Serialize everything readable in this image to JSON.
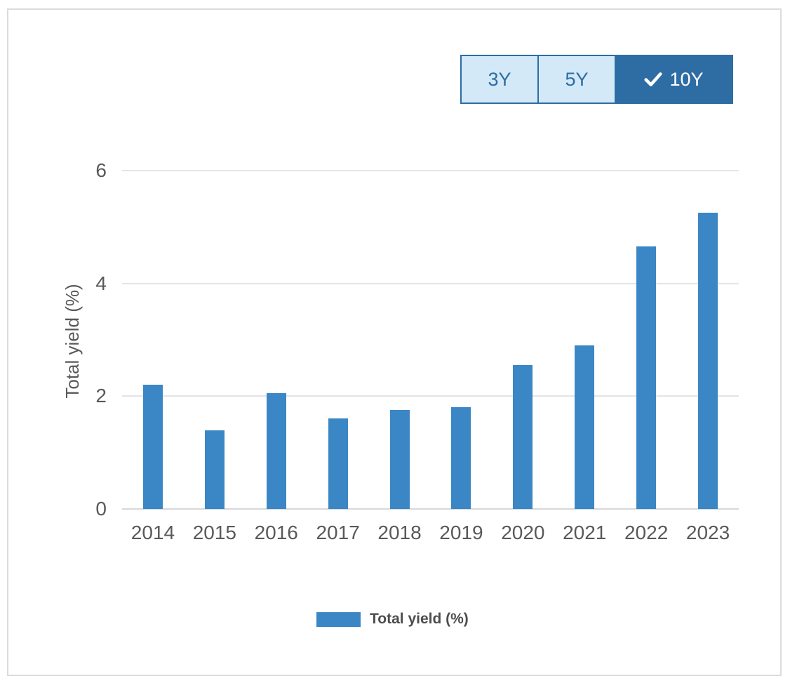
{
  "range_selector": {
    "options": [
      {
        "label": "3Y",
        "selected": false
      },
      {
        "label": "5Y",
        "selected": false
      },
      {
        "label": "10Y",
        "selected": true,
        "icon": "check-icon"
      }
    ]
  },
  "chart_data": {
    "type": "bar",
    "title": "",
    "categories": [
      "2014",
      "2015",
      "2016",
      "2017",
      "2018",
      "2019",
      "2020",
      "2021",
      "2022",
      "2023"
    ],
    "series": [
      {
        "name": "Total yield (%)",
        "values": [
          2.2,
          1.4,
          2.05,
          1.6,
          1.75,
          1.8,
          2.55,
          2.9,
          4.65,
          5.25
        ]
      }
    ],
    "xlabel": "",
    "ylabel": "Total yield (%)",
    "ylim": [
      0,
      6
    ],
    "yticks": [
      0,
      2,
      4,
      6
    ],
    "grid": true,
    "legend": {
      "label": "Total yield (%)",
      "position": "bottom"
    },
    "colors": {
      "bar": "#3B87C5",
      "selected_button_bg": "#2E6DA4",
      "button_bg": "#D3E9F7",
      "button_border": "#2E6DA4",
      "button_text": "#2E6DA4",
      "selected_button_text": "#FFFFFF",
      "gridline": "#E4E4E9",
      "axis_line": "#D8D8DC",
      "axis_text": "#595959",
      "legend_text": "#4D4D4D"
    }
  }
}
